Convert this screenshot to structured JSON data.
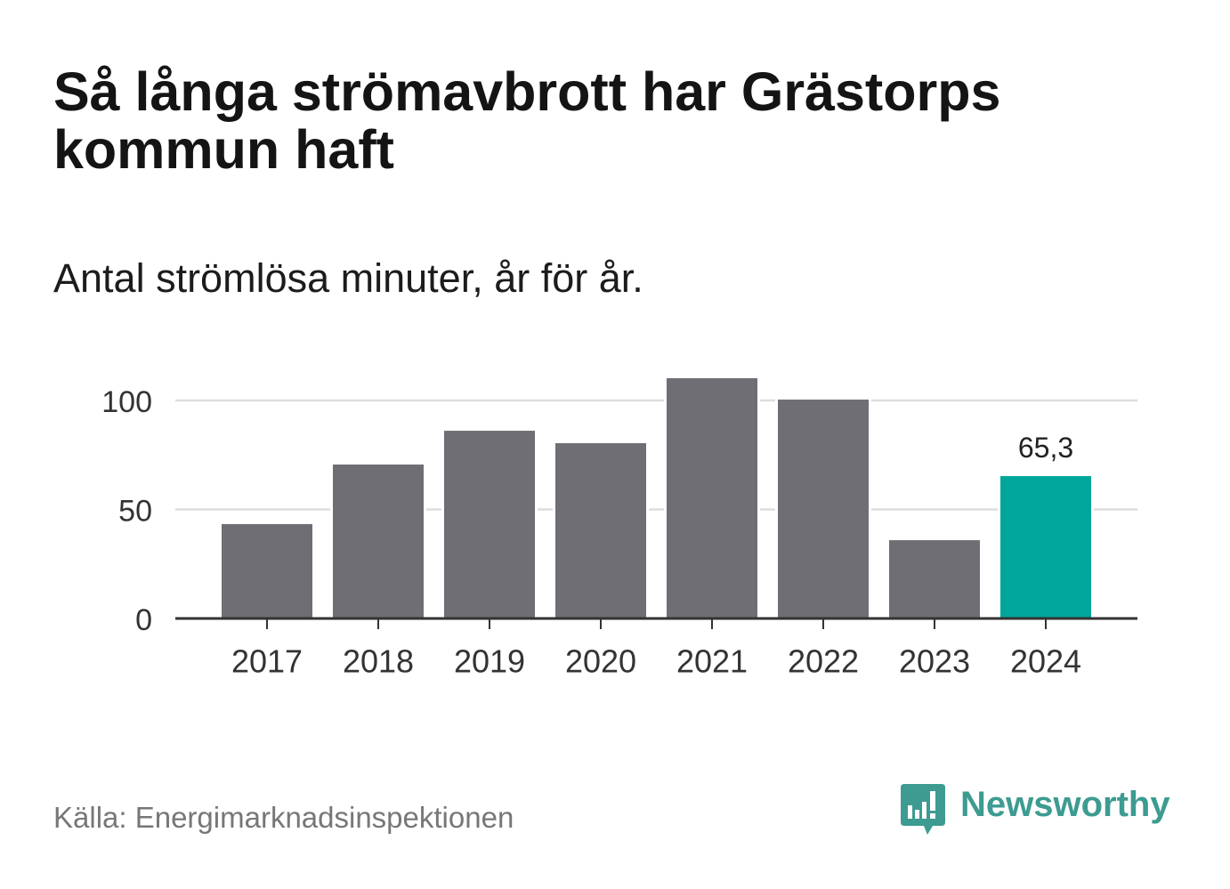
{
  "chart_data": {
    "type": "bar",
    "title": "Så långa strömavbrott har Grästorps kommun haft",
    "subtitle": "Antal strömlösa minuter, år för år.",
    "categories": [
      "2017",
      "2018",
      "2019",
      "2020",
      "2021",
      "2022",
      "2023",
      "2024"
    ],
    "values": [
      43.3,
      70.6,
      86.1,
      80.4,
      110.2,
      100.4,
      35.9,
      65.3
    ],
    "ylim": [
      0,
      120
    ],
    "yticks": [
      0,
      50,
      100
    ],
    "grid": true,
    "data_labels": [
      "",
      "",
      "",
      "",
      "",
      "",
      "",
      "65,3"
    ],
    "bar_colors": [
      "#6f6e74",
      "#6f6e74",
      "#6f6e74",
      "#6f6e74",
      "#6f6e74",
      "#6f6e74",
      "#6f6e74",
      "#00a69a"
    ],
    "colors": {
      "grid": "#dddddd",
      "axis": "#333333",
      "tick_text": "#333333",
      "label_text": "#222222"
    }
  },
  "source": "Källa: Energimarknadsinspektionen",
  "brand": {
    "name": "Newsworthy",
    "icon": "chart-speech-bubble-icon",
    "color": "#3d9b91"
  }
}
